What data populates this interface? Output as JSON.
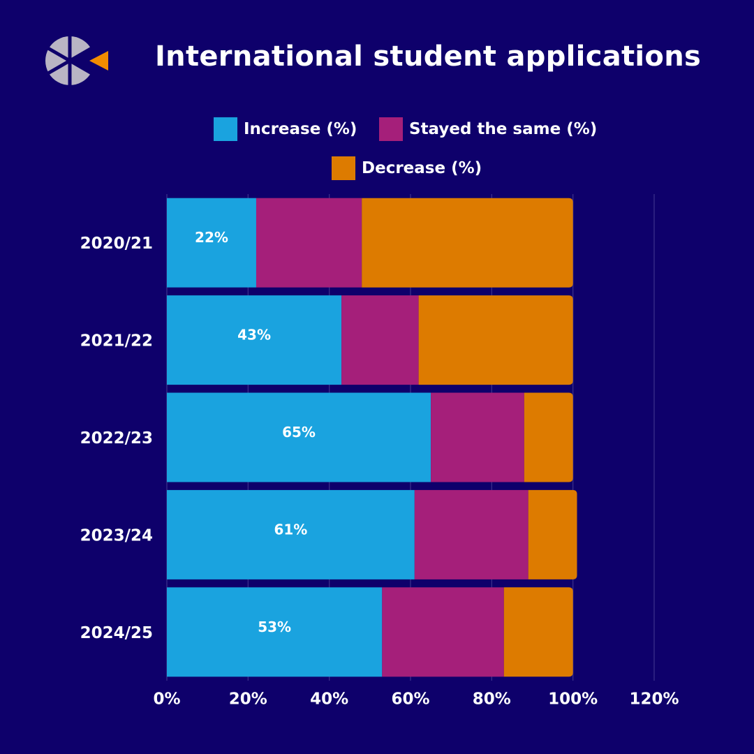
{
  "colors": {
    "background": "#0e006b",
    "increase": "#1aa3df",
    "same": "#a51f7a",
    "decrease": "#dd7b00",
    "grid": "#3a2f8a",
    "logo_gray": "#b9b5c4",
    "logo_orange": "#f28c00"
  },
  "icons": {
    "logo": "segmented-circle-arrow-logo"
  },
  "chart_data": {
    "type": "bar",
    "orientation": "horizontal",
    "stacked": true,
    "title": "International student applications",
    "categories": [
      "2020/21",
      "2021/22",
      "2022/23",
      "2023/24",
      "2024/25"
    ],
    "series": [
      {
        "name": "Increase (%)",
        "values": [
          22,
          43,
          65,
          61,
          53
        ]
      },
      {
        "name": "Stayed the same (%)",
        "values": [
          26,
          19,
          23,
          28,
          30
        ]
      },
      {
        "name": "Decrease (%)",
        "values": [
          52,
          38,
          12,
          12,
          17
        ]
      }
    ],
    "data_labels": [
      "22%",
      "43%",
      "65%",
      "61%",
      "53%"
    ],
    "xlim": [
      0,
      120
    ],
    "x_ticks": [
      "0%",
      "20%",
      "40%",
      "60%",
      "80%",
      "100%",
      "120%"
    ],
    "legend_position": "top",
    "grid": true
  }
}
